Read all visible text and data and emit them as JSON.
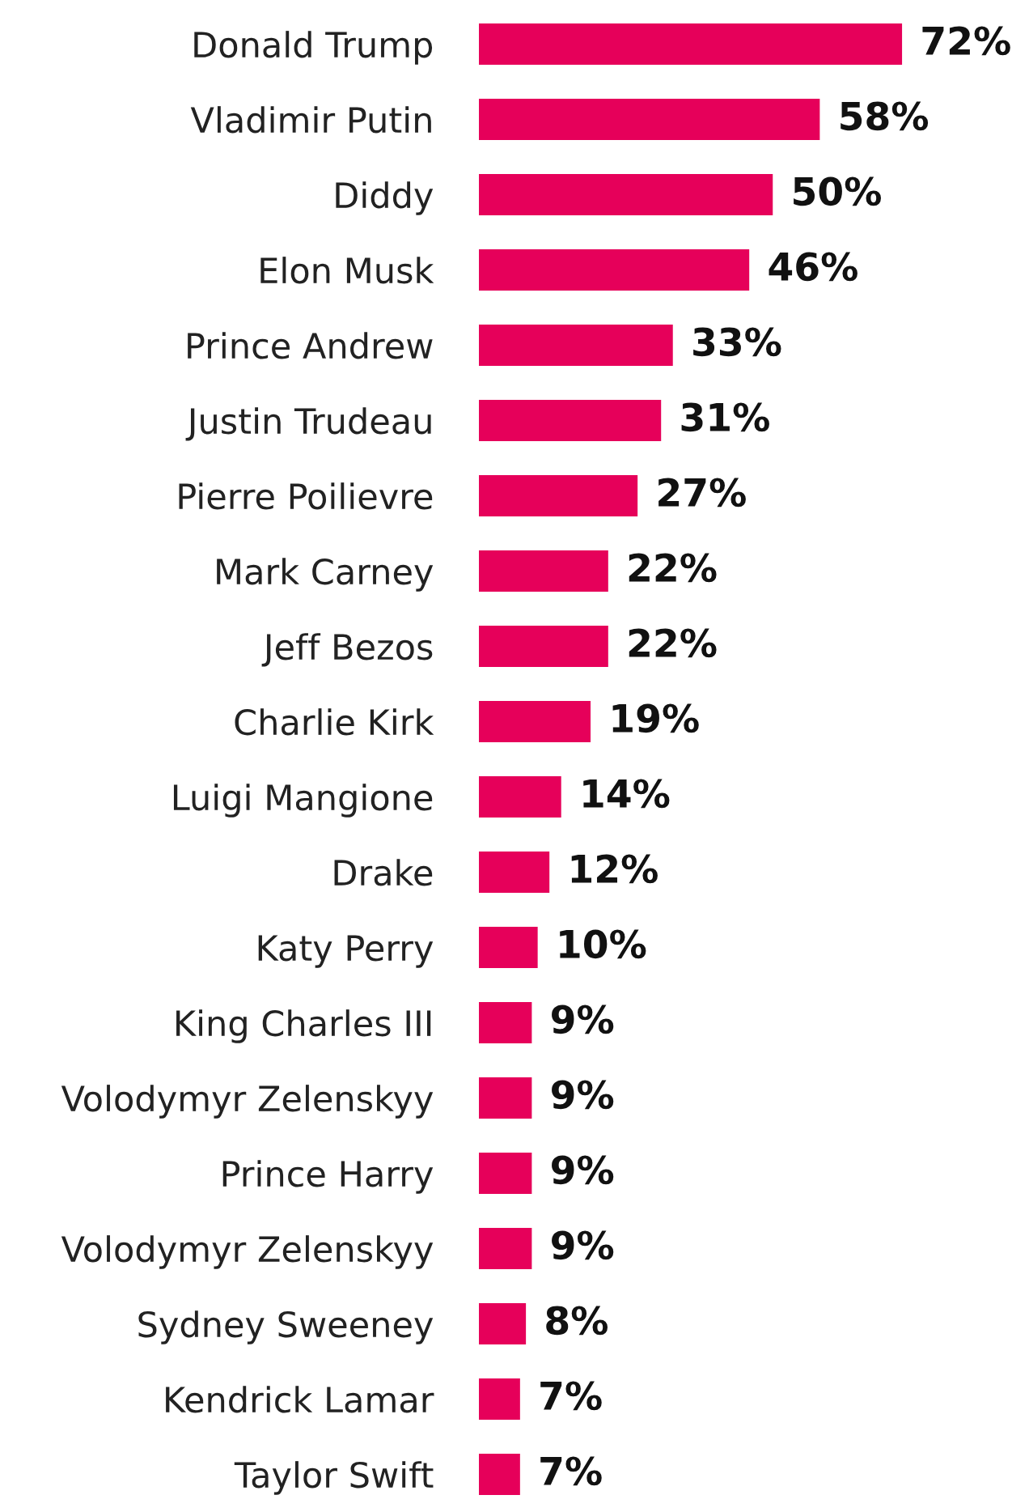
{
  "chart_data": {
    "type": "bar",
    "orientation": "horizontal",
    "categories": [
      "Donald Trump",
      "Vladimir Putin",
      "Diddy",
      "Elon Musk",
      "Prince Andrew",
      "Justin Trudeau",
      "Pierre Poilievre",
      "Mark Carney",
      "Jeff Bezos",
      "Charlie Kirk",
      "Luigi Mangione",
      "Drake",
      "Katy Perry",
      "King Charles III",
      "Volodymyr Zelenskyy",
      "Prince Harry",
      "Volodymyr Zelenskyy",
      "Sydney Sweeney",
      "Kendrick Lamar",
      "Taylor Swift"
    ],
    "values": [
      72,
      58,
      50,
      46,
      33,
      31,
      27,
      22,
      22,
      19,
      14,
      12,
      10,
      9,
      9,
      9,
      9,
      8,
      7,
      7
    ],
    "value_labels": [
      "72%",
      "58%",
      "50%",
      "46%",
      "33%",
      "31%",
      "27%",
      "22%",
      "22%",
      "19%",
      "14%",
      "12%",
      "10%",
      "9%",
      "9%",
      "9%",
      "9%",
      "8%",
      "7%",
      "7%"
    ],
    "color": "#e6005a"
  }
}
